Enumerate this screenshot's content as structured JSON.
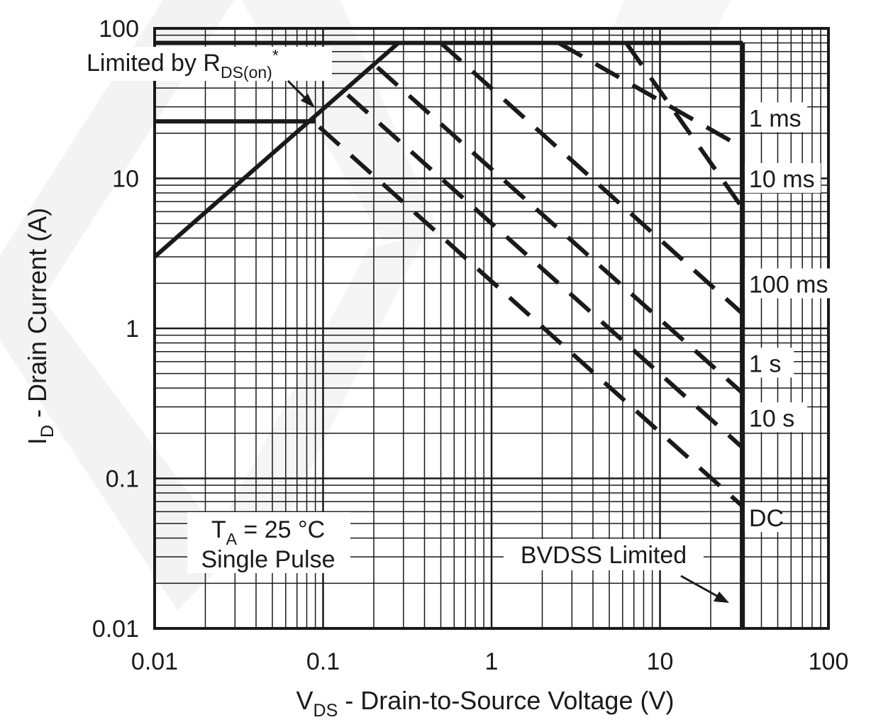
{
  "chart_data": {
    "type": "line",
    "x_scale": "log",
    "y_scale": "log",
    "xlim": [
      0.01,
      100
    ],
    "ylim": [
      0.01,
      100
    ],
    "grid": true,
    "x_ticks": [
      "0.01",
      "0.1",
      "1",
      "10",
      "100"
    ],
    "y_ticks": [
      "100",
      "10",
      "1",
      "0.1",
      "0.01"
    ],
    "xlabel": {
      "main": "V",
      "sub": "DS",
      "rest": " - Drain-to-Source Voltage (V)"
    },
    "ylabel": {
      "main": "I",
      "sub": "D",
      "rest": " - Drain Current (A)"
    },
    "annotations": {
      "rds": {
        "main": "Limited by R",
        "sub": "DS(on)",
        "sup": "*"
      },
      "ta": {
        "main": "T",
        "sub": "A",
        "rest": " = 25 °C",
        "line2": "Single Pulse"
      },
      "bvdss": "BVDSS Limited"
    },
    "rds_limit": {
      "x": [
        0.01,
        0.28
      ],
      "y": [
        3.0,
        80
      ]
    },
    "current_limits": [
      {
        "x": [
          0.01,
          31
        ],
        "y": [
          80,
          80
        ]
      },
      {
        "x": [
          0.01,
          0.09
        ],
        "y": [
          24,
          24
        ]
      }
    ],
    "bvdss_limit": {
      "x": [
        31,
        31
      ],
      "y": [
        0.01,
        80
      ]
    },
    "series": [
      {
        "name": "1 ms",
        "style": "dashed",
        "x": [
          2.5,
          31
        ],
        "y": [
          80,
          16
        ]
      },
      {
        "name": "10 ms",
        "style": "dashed",
        "x": [
          6.3,
          31
        ],
        "y": [
          80,
          6.3
        ]
      },
      {
        "name": "100 ms",
        "style": "dashed",
        "x": [
          0.5,
          31
        ],
        "y": [
          80,
          1.25
        ]
      },
      {
        "name": "1 s",
        "style": "dashed",
        "x": [
          0.21,
          31
        ],
        "y": [
          55,
          0.37
        ]
      },
      {
        "name": "10 s",
        "style": "dashed",
        "x": [
          0.14,
          31
        ],
        "y": [
          36,
          0.16
        ]
      },
      {
        "name": "DC",
        "style": "dashed",
        "x": [
          0.095,
          31
        ],
        "y": [
          22,
          0.065
        ]
      }
    ]
  }
}
